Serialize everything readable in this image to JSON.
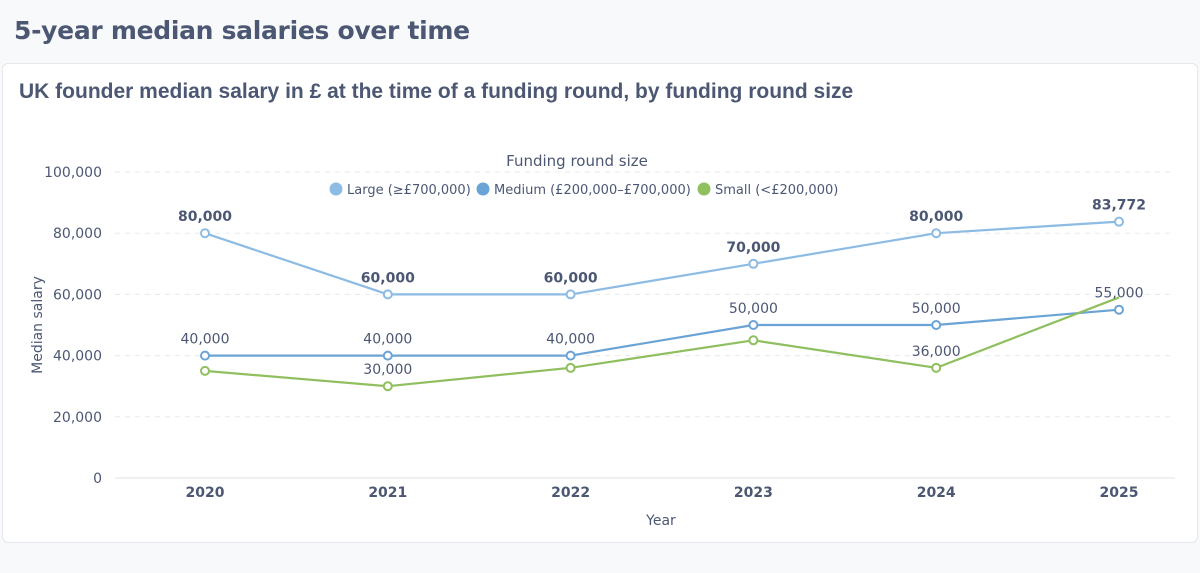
{
  "page": {
    "section_title": "5-year median salaries over time",
    "card_title": "UK founder median salary in £ at the time of a funding round, by funding round size"
  },
  "chart_data": {
    "type": "line",
    "title": "UK founder median salary in £ at the time of a funding round, by funding round size",
    "xlabel": "Year",
    "ylabel": "Median salary",
    "x": [
      "2020",
      "2021",
      "2022",
      "2023",
      "2024",
      "2025"
    ],
    "ylim": [
      0,
      100000
    ],
    "yticks": [
      0,
      20000,
      40000,
      60000,
      80000,
      100000
    ],
    "ytick_labels": [
      "0",
      "20,000",
      "40,000",
      "60,000",
      "80,000",
      "100,000"
    ],
    "grid": true,
    "legend": {
      "title": "Funding round size",
      "position": "top-center"
    },
    "series": [
      {
        "name": "Large (≥£700,000)",
        "color": "#8cbbe3",
        "values": [
          80000,
          60000,
          60000,
          70000,
          80000,
          83772
        ],
        "labels": [
          "80,000",
          "60,000",
          "60,000",
          "70,000",
          "80,000",
          "83,772"
        ],
        "label_pos": [
          "above",
          "above",
          "above",
          "above",
          "above",
          "above"
        ]
      },
      {
        "name": "Medium (£200,000–£700,000)",
        "color": "#6aa3d5",
        "values": [
          40000,
          40000,
          40000,
          50000,
          50000,
          55000
        ],
        "labels": [
          "40,000",
          "40,000",
          "40,000",
          "50,000",
          "50,000",
          "55,000"
        ],
        "label_pos": [
          "above",
          "above",
          "above",
          "above",
          "above",
          "above"
        ]
      },
      {
        "name": "Small (<£200,000)",
        "color": "#8fbf5e",
        "values": [
          35000,
          30000,
          36000,
          45000,
          36000,
          59000
        ],
        "labels": [
          null,
          "30,000",
          null,
          null,
          "36,000",
          null
        ],
        "label_pos": [
          null,
          "above",
          null,
          null,
          "above",
          null
        ]
      }
    ]
  }
}
